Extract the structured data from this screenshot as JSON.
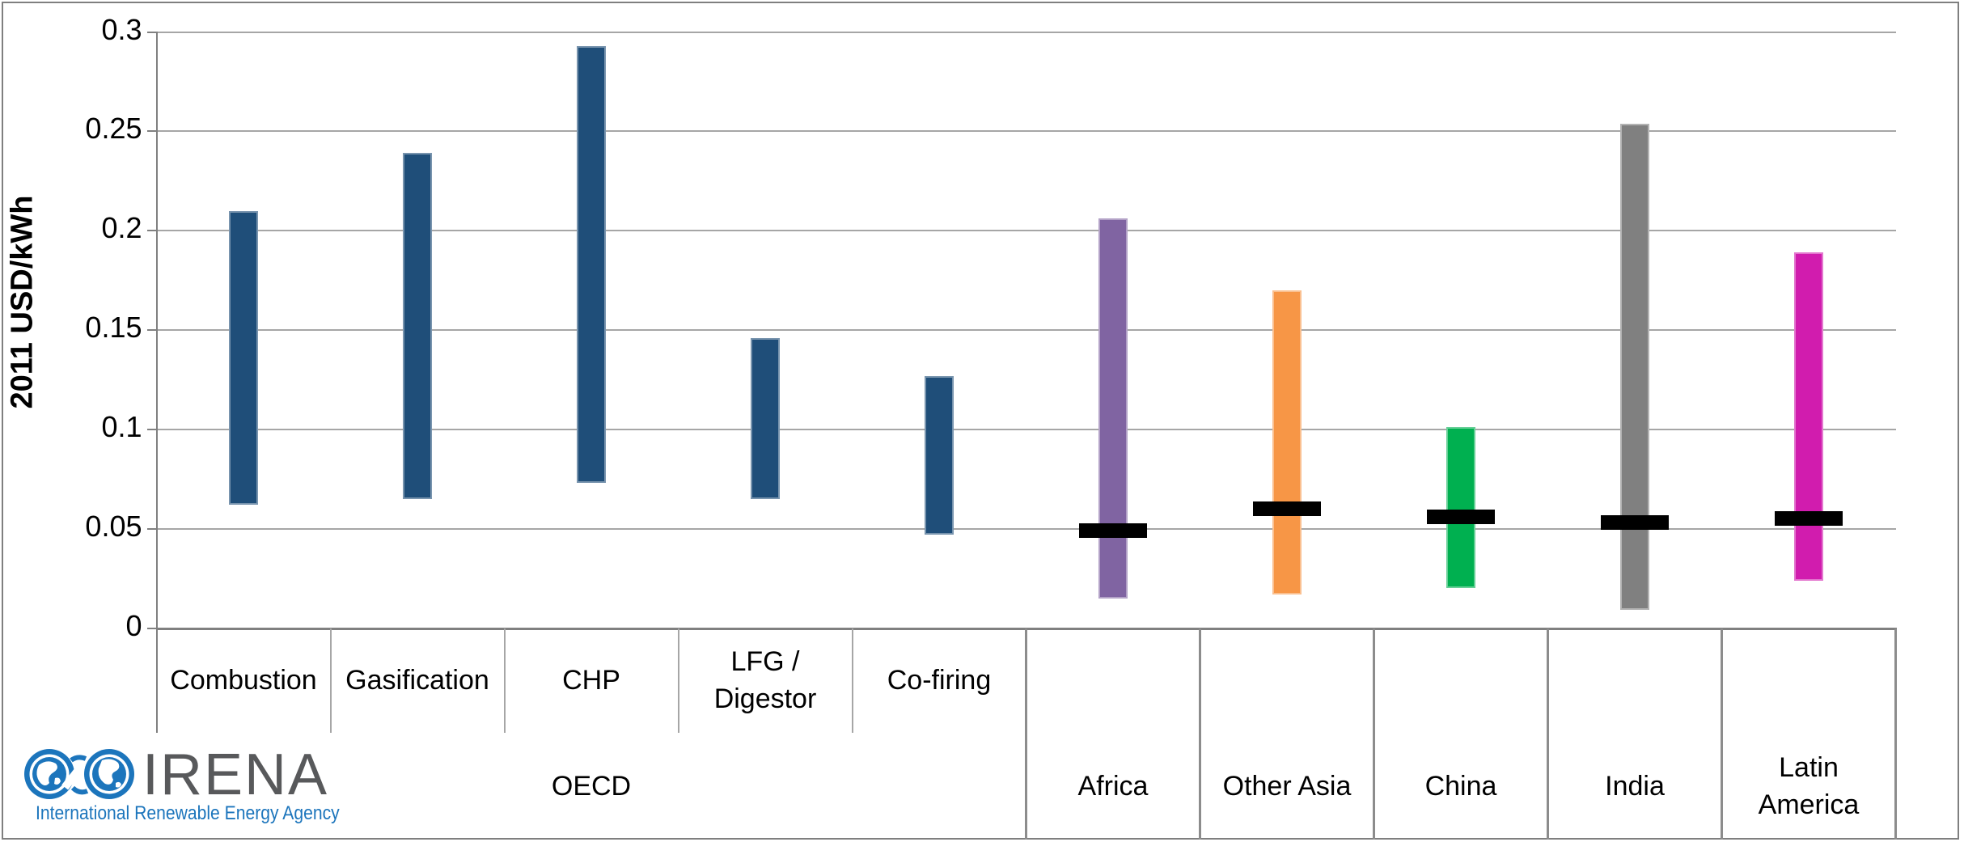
{
  "chart_data": {
    "type": "bar",
    "subtype": "floating-range-bars-with-average-markers",
    "title": "",
    "ylabel": "2011 USD/kWh",
    "ylim": [
      0,
      0.3
    ],
    "yticks": [
      0,
      0.05,
      0.1,
      0.15,
      0.2,
      0.25,
      0.3
    ],
    "ytick_labels": [
      "0",
      "0.05",
      "0.1",
      "0.15",
      "0.2",
      "0.25",
      "0.3"
    ],
    "grid": true,
    "legend": "none",
    "groups": [
      {
        "label": "OECD",
        "span": [
          0,
          4
        ]
      }
    ],
    "series": [
      {
        "category": "Combustion",
        "group": "OECD",
        "low": 0.062,
        "high": 0.21,
        "color": "#1F4E79"
      },
      {
        "category": "Gasification",
        "group": "OECD",
        "low": 0.065,
        "high": 0.239,
        "color": "#1F4E79"
      },
      {
        "category": "CHP",
        "group": "OECD",
        "low": 0.073,
        "high": 0.293,
        "color": "#1F4E79"
      },
      {
        "category": "LFG / Digestor",
        "group": "OECD",
        "low": 0.065,
        "high": 0.146,
        "color": "#1F4E79"
      },
      {
        "category": "Co-firing",
        "group": "OECD",
        "low": 0.047,
        "high": 0.127,
        "color": "#1F4E79"
      },
      {
        "category": "Africa",
        "low": 0.015,
        "high": 0.206,
        "marker": 0.049,
        "color": "#8064A2"
      },
      {
        "category": "Other Asia",
        "low": 0.017,
        "high": 0.17,
        "marker": 0.06,
        "color": "#F79646"
      },
      {
        "category": "China",
        "low": 0.02,
        "high": 0.101,
        "marker": 0.056,
        "color": "#00B050"
      },
      {
        "category": "India",
        "low": 0.009,
        "high": 0.254,
        "marker": 0.053,
        "color": "#808080"
      },
      {
        "category": "Latin America",
        "low": 0.024,
        "high": 0.189,
        "marker": 0.055,
        "color": "#D11CAE"
      }
    ],
    "colors": {
      "gridline": "#A6A6A6",
      "axis": "#808080",
      "marker": "#000000"
    }
  },
  "branding": {
    "logo_text": "IRENA",
    "logo_subtext": "International Renewable Energy Agency",
    "logo_blue": "#1C75BC",
    "logo_gray": "#58595B"
  }
}
